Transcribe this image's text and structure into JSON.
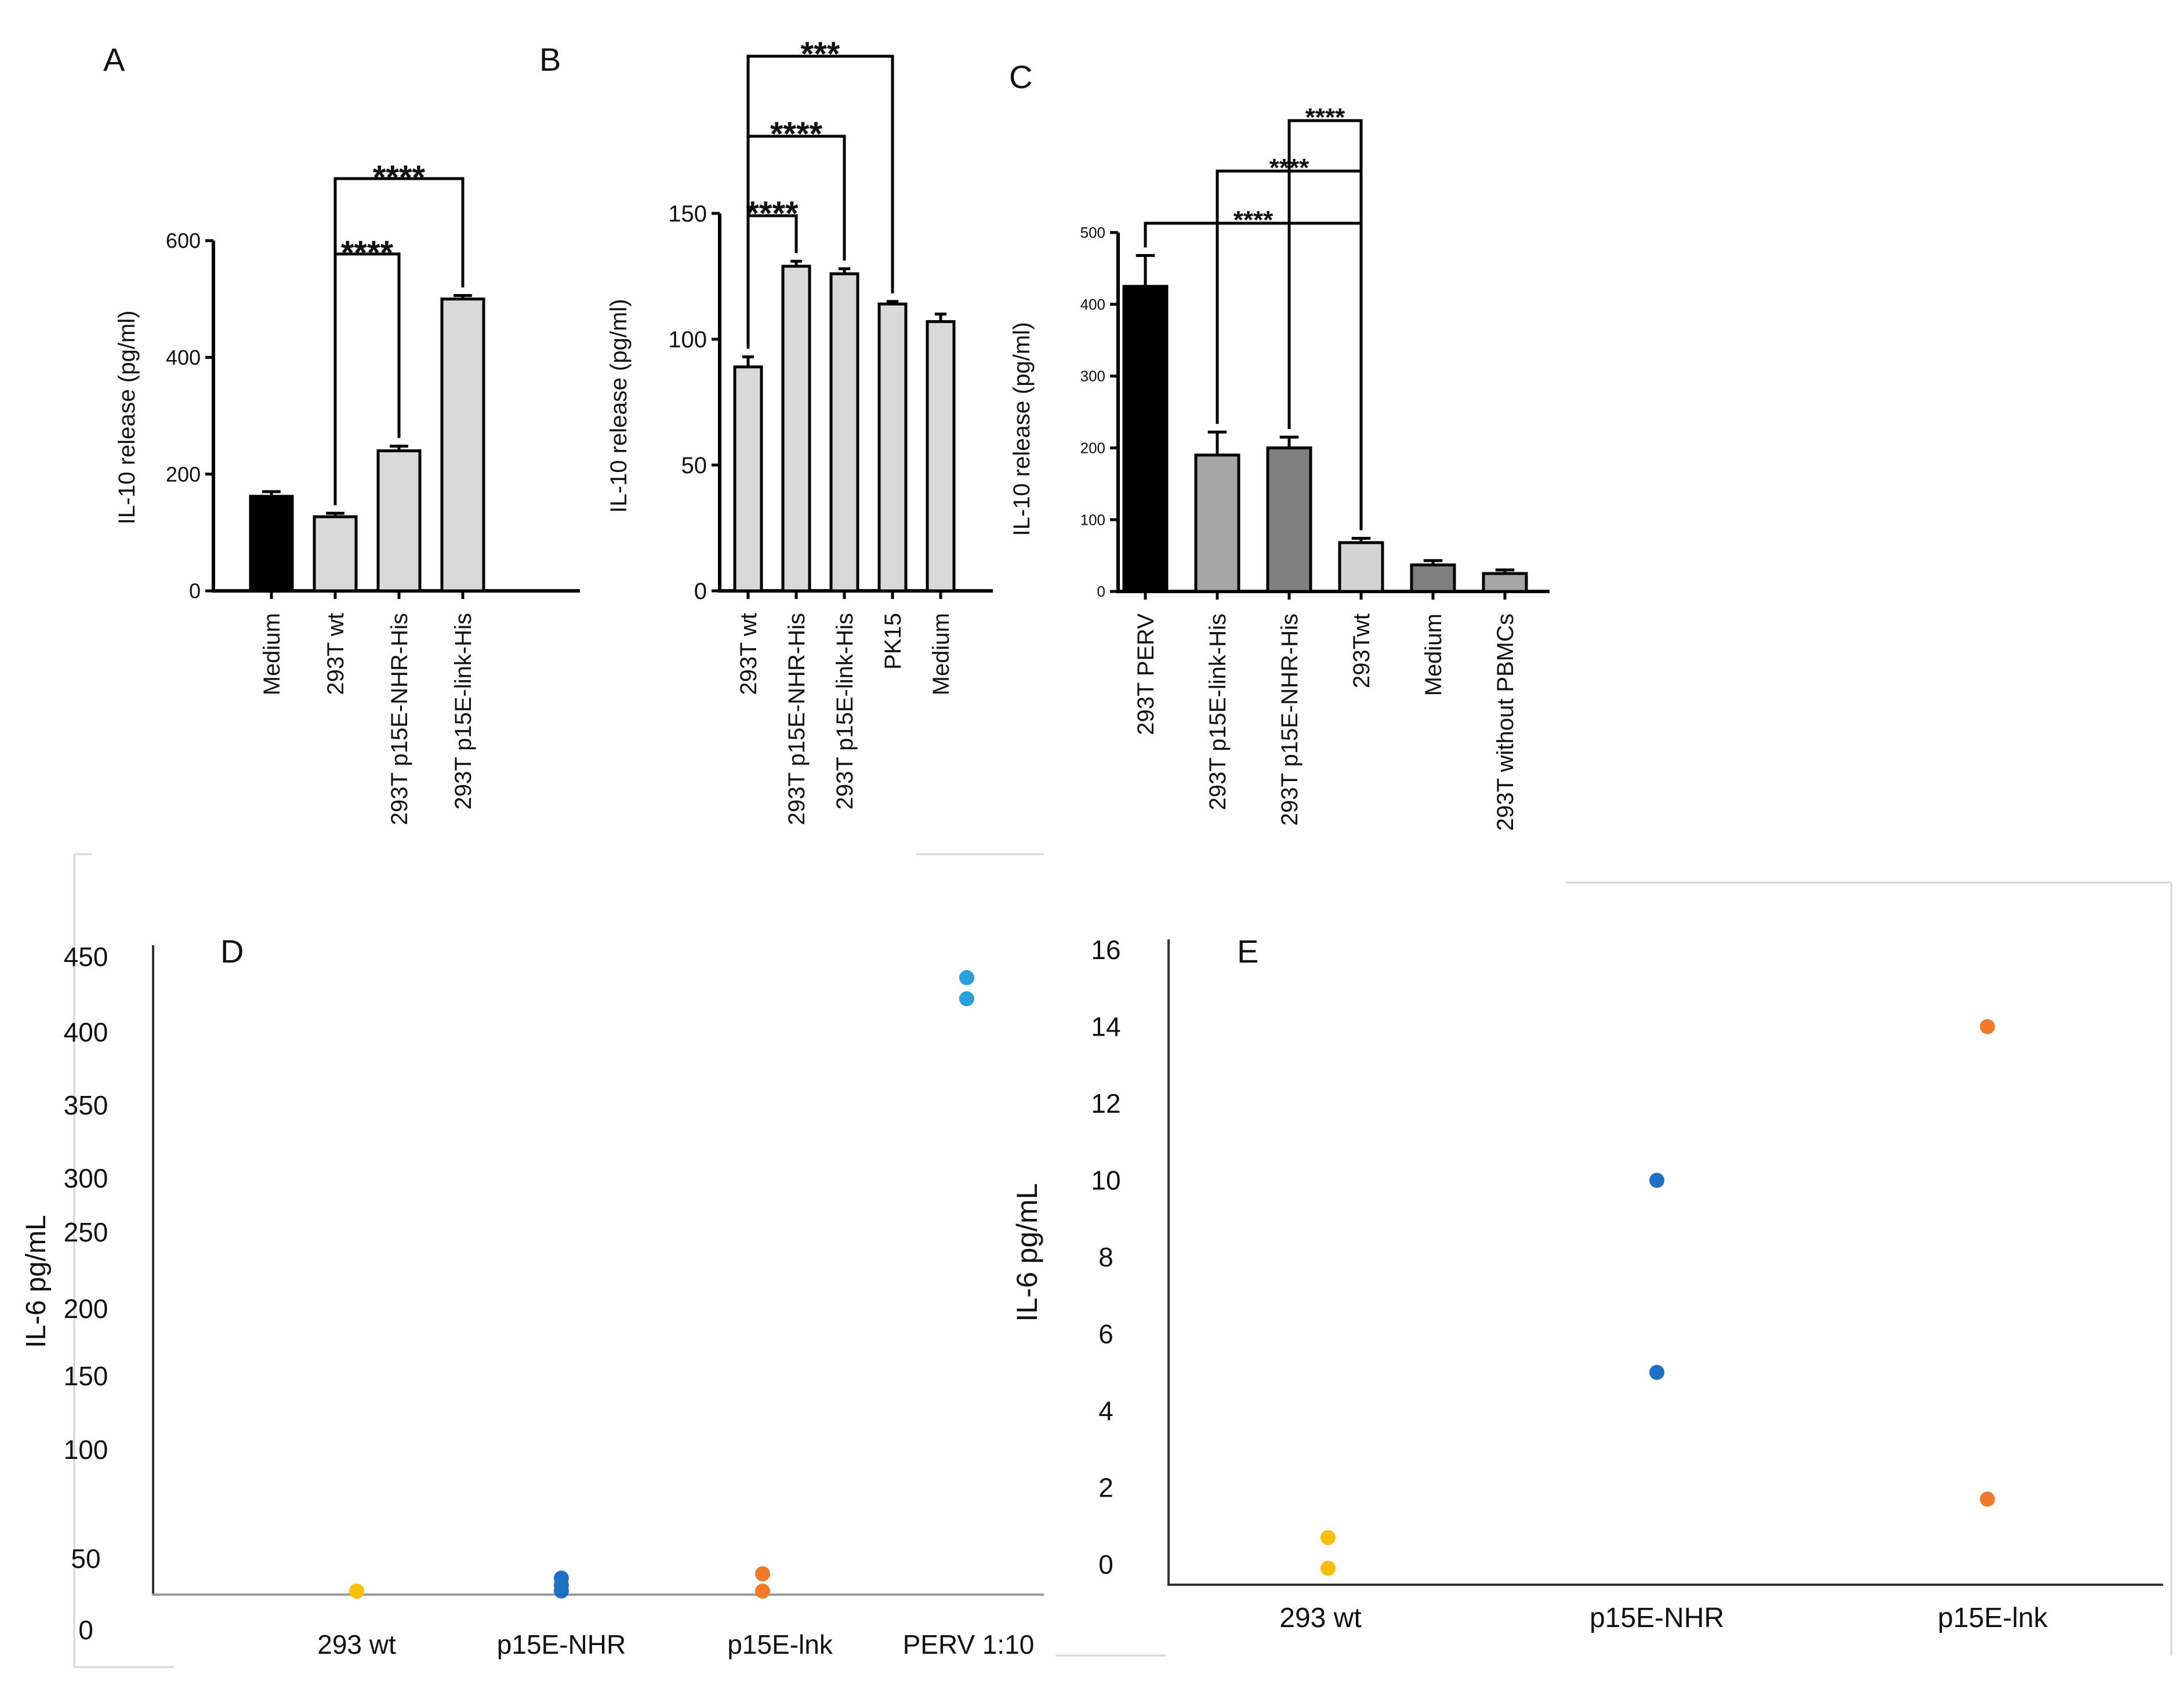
{
  "figure": {
    "colors": {
      "black": "#000000",
      "light_gray": "#d9d9d9",
      "mid_gray": "#a6a6a6",
      "dark_gray": "#7f7f7f",
      "pale_gray": "#d4d4d4",
      "yellow": "#fbbf0a",
      "blue": "#1f6fc4",
      "orange": "#f07a2a",
      "cyan": "#2aa0db"
    }
  },
  "chart_data": [
    {
      "panel": "A",
      "type": "bar",
      "categories": [
        "Medium",
        "293T wt",
        "293T p15E-NHR-His",
        "293T p15E-link-His"
      ],
      "values": [
        162,
        127,
        240,
        500
      ],
      "errors": [
        8,
        6,
        8,
        6
      ],
      "bar_colors": [
        "black",
        "light_gray",
        "light_gray",
        "light_gray"
      ],
      "ylabel": "IL-10 release (pg/ml)",
      "ylim": [
        0,
        600
      ],
      "yticks": [
        0,
        200,
        400,
        600
      ],
      "significance": [
        {
          "from": 1,
          "to": 2,
          "label": "****"
        },
        {
          "from": 1,
          "to": 3,
          "label": "****"
        }
      ]
    },
    {
      "panel": "B",
      "type": "bar",
      "categories": [
        "293T wt",
        "293T p15E-NHR-His",
        "293T p15E-link-His",
        "PK15",
        "Medium"
      ],
      "values": [
        89,
        129,
        126,
        114,
        107
      ],
      "errors": [
        4,
        2,
        2,
        1,
        3
      ],
      "bar_colors": [
        "light_gray",
        "light_gray",
        "light_gray",
        "light_gray",
        "light_gray"
      ],
      "ylabel": "IL-10 release (pg/ml)",
      "ylim": [
        0,
        150
      ],
      "yticks": [
        0,
        50,
        100,
        150
      ],
      "significance": [
        {
          "from": 0,
          "to": 1,
          "label": "****"
        },
        {
          "from": 0,
          "to": 2,
          "label": "****"
        },
        {
          "from": 0,
          "to": 3,
          "label": "***"
        }
      ]
    },
    {
      "panel": "C",
      "type": "bar",
      "categories": [
        "293T PERV",
        "293T p15E-link-His",
        "293T p15E-NHR-His",
        "293Twt",
        "Medium",
        "293T without PBMCs"
      ],
      "values": [
        425,
        190,
        200,
        68,
        37,
        25
      ],
      "errors": [
        43,
        32,
        15,
        6,
        6,
        5
      ],
      "bar_colors": [
        "black",
        "mid_gray",
        "dark_gray",
        "pale_gray",
        "dark_gray",
        "mid_gray"
      ],
      "ylabel": "IL-10 release (pg/ml)",
      "ylim": [
        0,
        500
      ],
      "yticks": [
        0,
        100,
        200,
        300,
        400,
        500
      ],
      "significance": [
        {
          "from": 0,
          "to": 3,
          "label": "****"
        },
        {
          "from": 1,
          "to": 3,
          "label": "****"
        },
        {
          "from": 2,
          "to": 3,
          "label": "****"
        }
      ]
    },
    {
      "panel": "D",
      "type": "scatter",
      "categories": [
        "293 wt",
        "p15E-NHR",
        "p15E-lnk",
        "PERV 1:10"
      ],
      "ylabel": "IL-6 pg/mL",
      "yticks": [
        0,
        50,
        100,
        150,
        200,
        250,
        300,
        350,
        400,
        450
      ],
      "points": [
        {
          "category": 0,
          "y": 3,
          "color": "yellow"
        },
        {
          "category": 0,
          "y": 1,
          "color": "yellow"
        },
        {
          "category": 1,
          "y": 14,
          "color": "blue"
        },
        {
          "category": 1,
          "y": 9,
          "color": "blue"
        },
        {
          "category": 1,
          "y": 5,
          "color": "blue"
        },
        {
          "category": 2,
          "y": 17,
          "color": "orange"
        },
        {
          "category": 2,
          "y": 4,
          "color": "orange"
        },
        {
          "category": 3,
          "y": 415,
          "color": "cyan"
        },
        {
          "category": 3,
          "y": 401,
          "color": "cyan"
        }
      ]
    },
    {
      "panel": "E",
      "type": "scatter",
      "categories": [
        "293 wt",
        "p15E-NHR",
        "p15E-lnk"
      ],
      "ylabel": "IL-6 pg/mL",
      "ylim": [
        0,
        16
      ],
      "yticks": [
        0,
        2,
        4,
        6,
        8,
        10,
        12,
        14,
        16
      ],
      "points": [
        {
          "category": 0,
          "y": 0.7,
          "color": "yellow"
        },
        {
          "category": 0,
          "y": -0.1,
          "color": "yellow"
        },
        {
          "category": 1,
          "y": 10,
          "color": "blue"
        },
        {
          "category": 1,
          "y": 5,
          "color": "blue"
        },
        {
          "category": 2,
          "y": 14,
          "color": "orange"
        },
        {
          "category": 2,
          "y": 1.7,
          "color": "orange"
        }
      ]
    }
  ]
}
